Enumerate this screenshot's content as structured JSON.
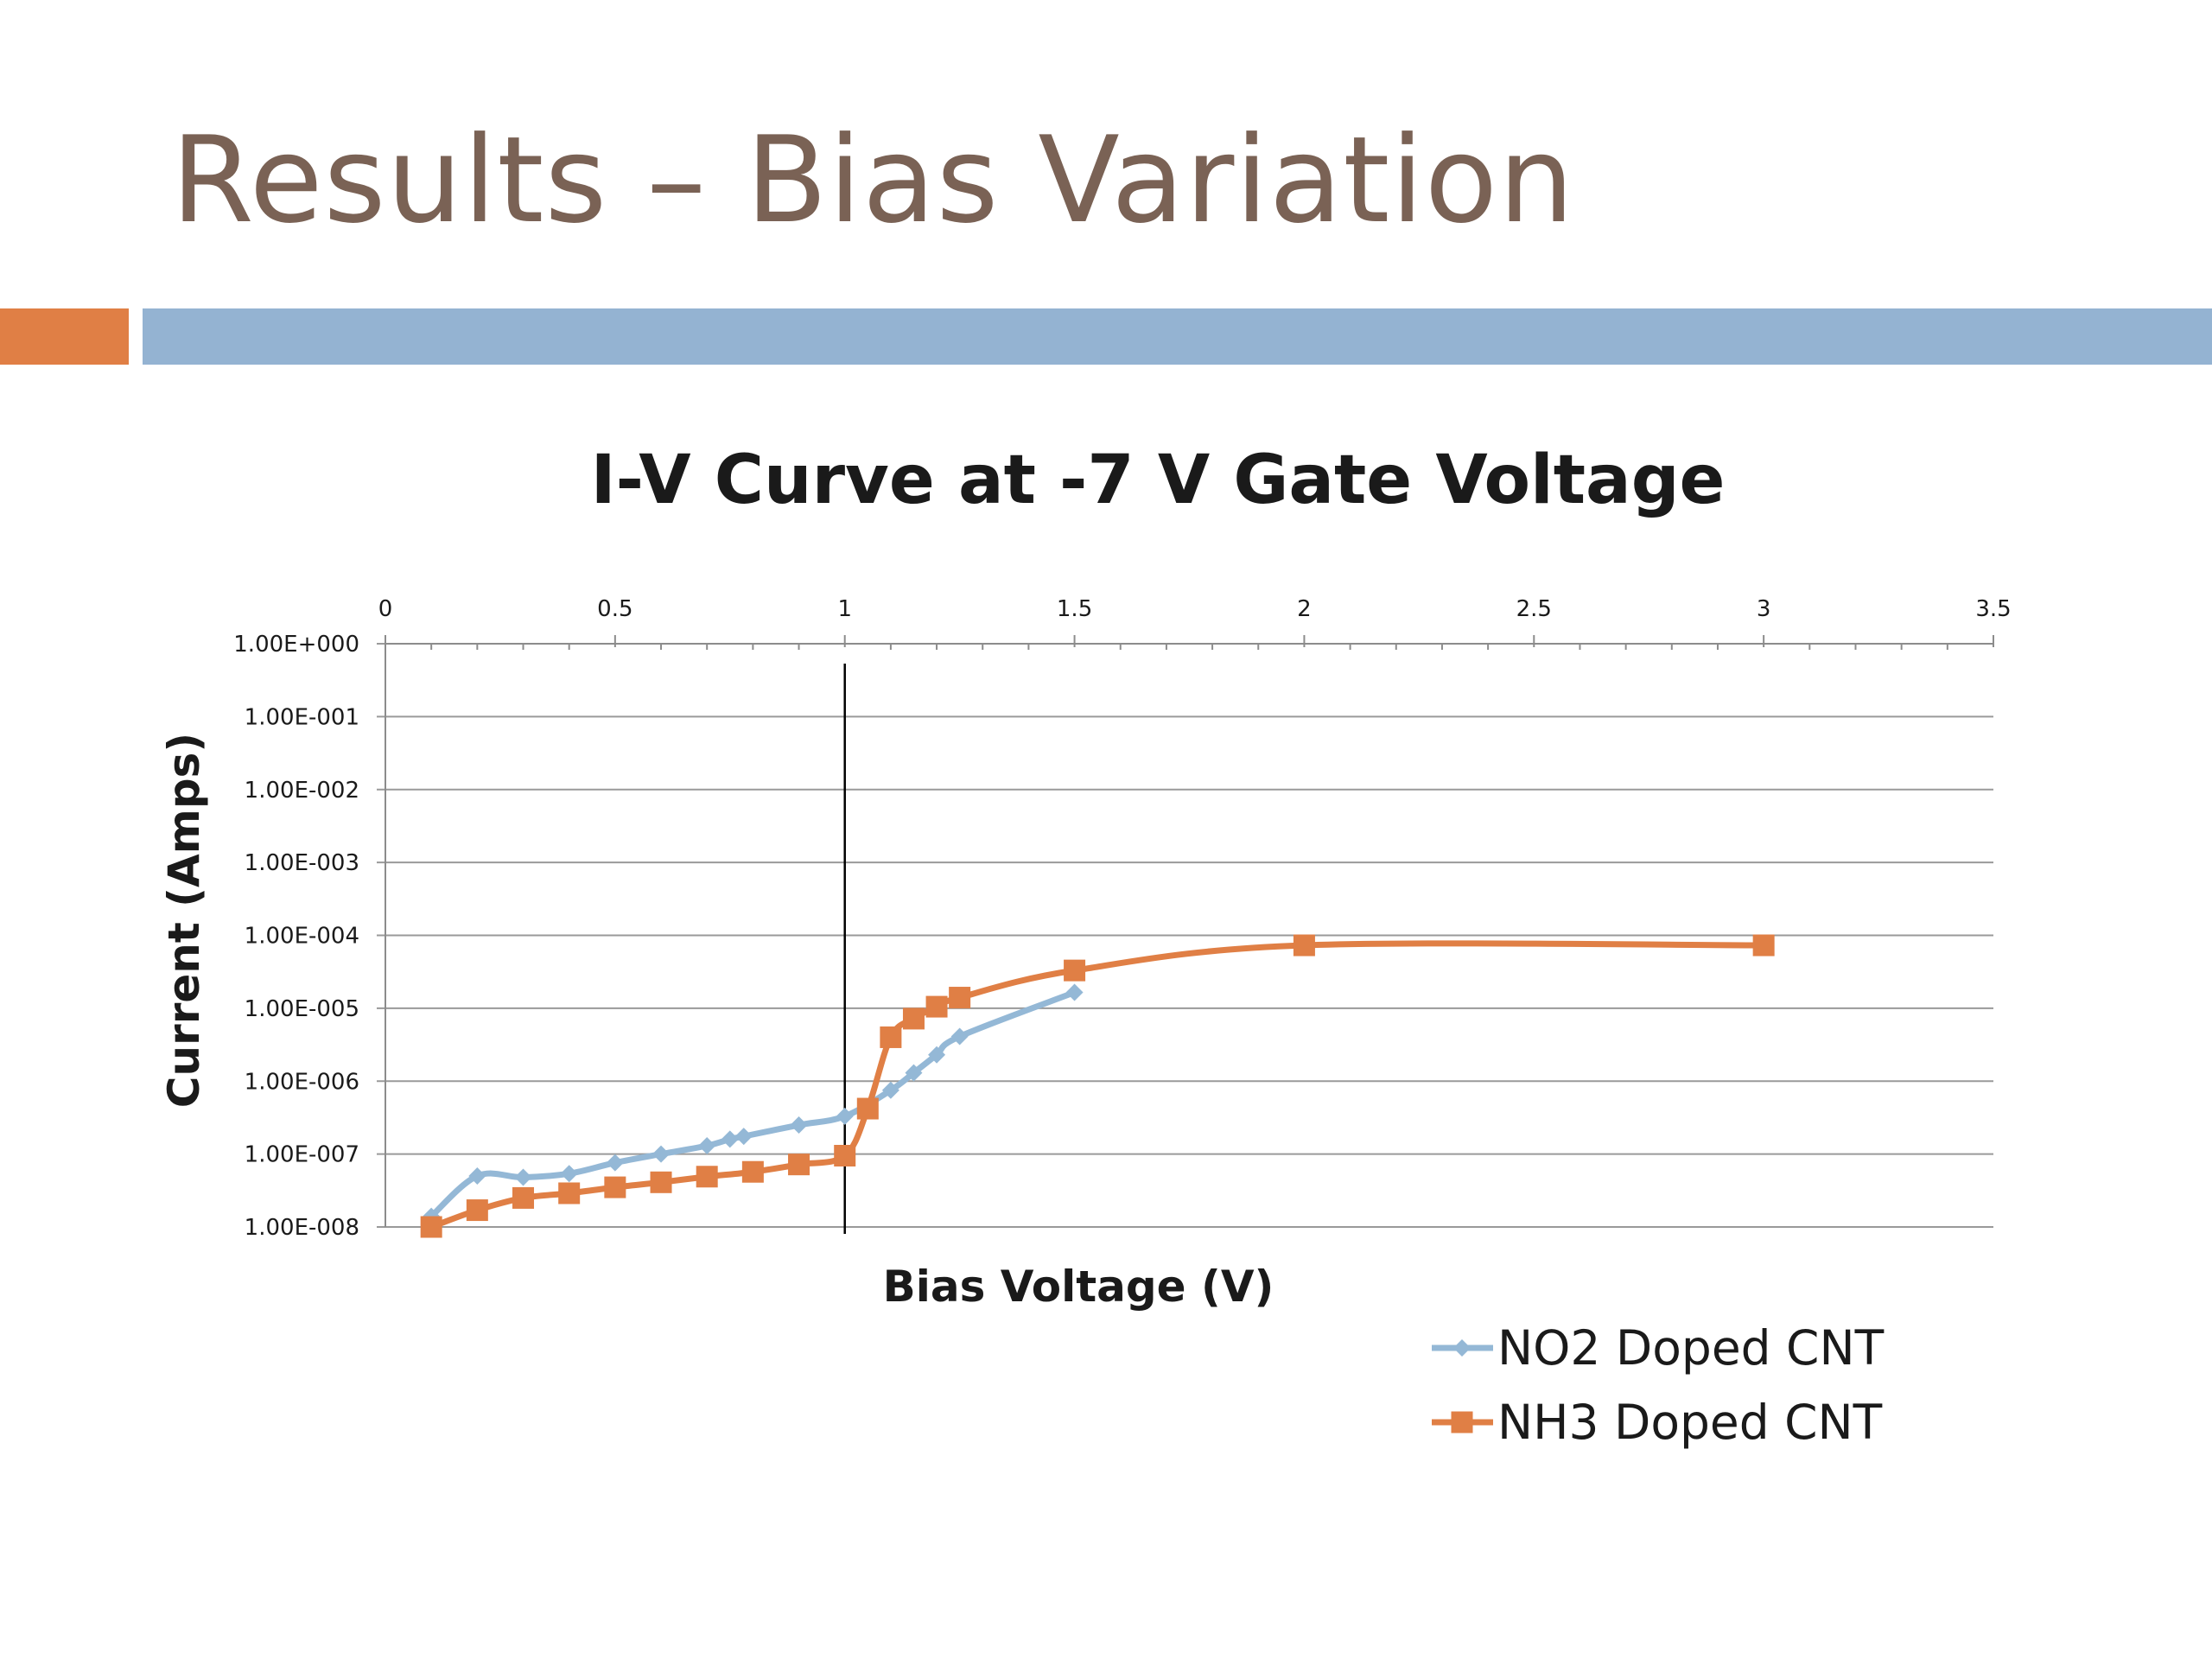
{
  "slide": {
    "title": "Results – Bias Variation"
  },
  "colors": {
    "title": "#7a6255",
    "accent_bar": "#e07f45",
    "main_bar": "#94b3d2",
    "series_no2": "#94b8d6",
    "series_nh3": "#e07f45",
    "gridline": "#9a9a9a"
  },
  "chart_data": {
    "type": "line",
    "title": "I-V Curve at -7 V Gate Voltage",
    "xlabel": "Bias Voltage (V)",
    "ylabel": "Current (Amps)",
    "x_axis_position": "top",
    "xlim": [
      0,
      3.5
    ],
    "x_ticks": [
      0,
      0.5,
      1,
      1.5,
      2,
      2.5,
      3,
      3.5
    ],
    "x_tick_labels": [
      "0",
      "0.5",
      "1",
      "1.5",
      "2",
      "2.5",
      "3",
      "3.5"
    ],
    "y_scale": "log",
    "ylim": [
      1e-08,
      1
    ],
    "y_ticks": [
      1,
      0.1,
      0.01,
      0.001,
      0.0001,
      1e-05,
      1e-06,
      1e-07,
      1e-08
    ],
    "y_tick_labels": [
      "1.00E+000",
      "1.00E-001",
      "1.00E-002",
      "1.00E-003",
      "1.00E-004",
      "1.00E-005",
      "1.00E-006",
      "1.00E-007",
      "1.00E-008"
    ],
    "reference_line_x": 1,
    "grid": "horizontal",
    "legend_position": "bottom-right",
    "series": [
      {
        "name": "NO2 Doped CNT",
        "marker": "diamond",
        "color": "#94b8d6",
        "x": [
          0.1,
          0.2,
          0.3,
          0.4,
          0.5,
          0.6,
          0.7,
          0.75,
          0.78,
          0.9,
          1.0,
          1.1,
          1.15,
          1.2,
          1.25,
          1.5
        ],
        "y": [
          1.4e-08,
          5e-08,
          4.8e-08,
          5.4e-08,
          7.6e-08,
          1e-07,
          1.3e-07,
          1.6e-07,
          1.75e-07,
          2.5e-07,
          3.3e-07,
          7.5e-07,
          1.3e-06,
          2.3e-06,
          4.1e-06,
          1.65e-05
        ]
      },
      {
        "name": "NH3 Doped CNT",
        "marker": "square",
        "color": "#e07f45",
        "x": [
          0.1,
          0.2,
          0.3,
          0.4,
          0.5,
          0.6,
          0.7,
          0.8,
          0.9,
          1.0,
          1.05,
          1.1,
          1.15,
          1.2,
          1.25,
          1.5,
          2.0,
          3.0
        ],
        "y": [
          1e-08,
          1.7e-08,
          2.5e-08,
          2.9e-08,
          3.5e-08,
          4.1e-08,
          4.9e-08,
          5.7e-08,
          7.2e-08,
          9.5e-08,
          4.2e-07,
          4e-06,
          7.2e-06,
          1.05e-05,
          1.4e-05,
          3.3e-05,
          7.3e-05,
          7.3e-05
        ]
      }
    ]
  }
}
